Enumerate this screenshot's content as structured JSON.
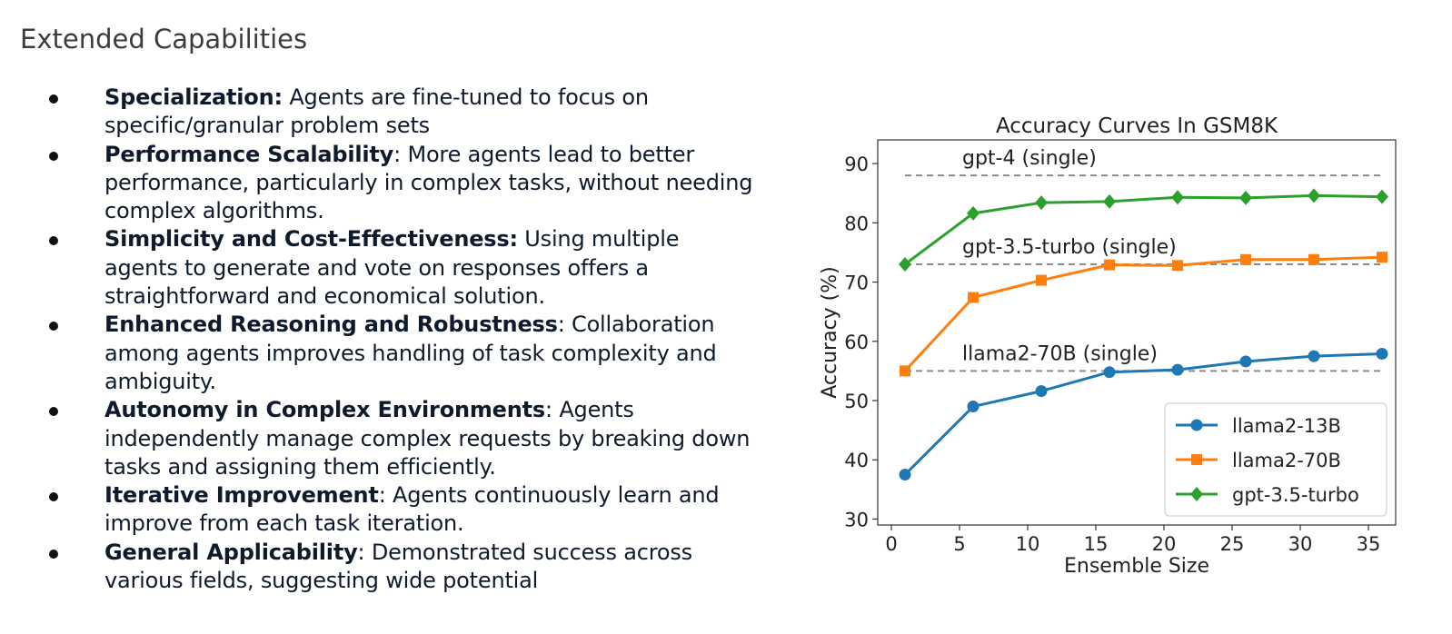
{
  "slide": {
    "title": "Extended Capabilities",
    "bullets": [
      {
        "bold": "Specialization:",
        "text": " Agents are fine-tuned to focus on specific/granular problem sets"
      },
      {
        "bold": "Performance Scalability",
        "text": ": More agents lead to better performance, particularly in complex tasks, without needing complex algorithms."
      },
      {
        "bold": "Simplicity and Cost-Effectiveness:",
        "text": " Using multiple agents to generate and vote on responses offers a straightforward and economical solution."
      },
      {
        "bold": "Enhanced Reasoning and Robustness",
        "text": ": Collaboration among agents improves handling of task complexity and ambiguity."
      },
      {
        "bold": "Autonomy in Complex Environments",
        "text": ": Agents independently manage complex requests by breaking down tasks and assigning them efficiently."
      },
      {
        "bold": "Iterative Improvement",
        "text": ": Agents continuously learn and improve from each task iteration."
      },
      {
        "bold": "General Applicability",
        "text": ": Demonstrated success across various fields, suggesting wide potential"
      }
    ]
  },
  "chart_data": {
    "type": "line",
    "title": "Accuracy Curves In GSM8K",
    "xlabel": "Ensemble Size",
    "ylabel": "Accuracy (%)",
    "xlim": [
      -1,
      37
    ],
    "ylim": [
      29,
      94
    ],
    "xticks": [
      0,
      5,
      10,
      15,
      20,
      25,
      30,
      35
    ],
    "yticks": [
      30,
      40,
      50,
      60,
      70,
      80,
      90
    ],
    "grid": false,
    "legend_position": "lower-right",
    "x": [
      1,
      6,
      11,
      16,
      21,
      26,
      31,
      36
    ],
    "series": [
      {
        "name": "llama2-13B",
        "color": "#1f77b4",
        "marker": "circle",
        "values": [
          37.5,
          49.0,
          51.6,
          54.8,
          55.2,
          56.6,
          57.5,
          57.9
        ]
      },
      {
        "name": "llama2-70B",
        "color": "#ff7f0e",
        "marker": "square",
        "values": [
          55.0,
          67.4,
          70.3,
          72.9,
          72.8,
          73.8,
          73.8,
          74.2
        ]
      },
      {
        "name": "gpt-3.5-turbo",
        "color": "#2ca02c",
        "marker": "diamond",
        "values": [
          73.0,
          81.6,
          83.4,
          83.6,
          84.3,
          84.2,
          84.6,
          84.4
        ]
      }
    ],
    "reference_lines": [
      {
        "label": "gpt-4 (single)",
        "y": 88
      },
      {
        "label": "gpt-3.5-turbo (single)",
        "y": 73
      },
      {
        "label": "llama2-70B (single)",
        "y": 55
      }
    ],
    "reference_color": "#8c8c8c"
  }
}
